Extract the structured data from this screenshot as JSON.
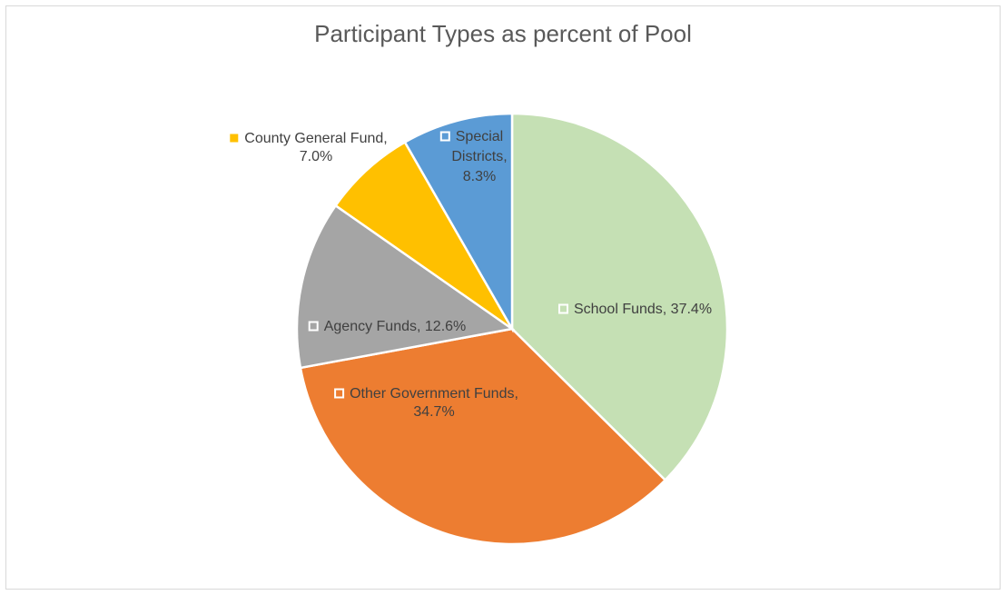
{
  "chart_data": {
    "type": "pie",
    "title": "Participant Types as percent of Pool",
    "legend": "none",
    "slices": [
      {
        "name": "School Funds",
        "value": 37.4,
        "label_lines": [
          "School Funds, 37.4%"
        ],
        "color": "#c5e0b4",
        "marker_style": "hollow"
      },
      {
        "name": "Other Government Funds",
        "value": 34.7,
        "label_lines": [
          "Other Government Funds,",
          "34.7%"
        ],
        "color": "#ed7d31",
        "marker_style": "hollow"
      },
      {
        "name": "Agency Funds",
        "value": 12.6,
        "label_lines": [
          "Agency Funds, 12.6%"
        ],
        "color": "#a5a5a5",
        "marker_style": "hollow"
      },
      {
        "name": "County General Fund",
        "value": 7.0,
        "label_lines": [
          "County General Fund,",
          "7.0%"
        ],
        "color": "#ffc000",
        "marker_style": "filled"
      },
      {
        "name": "Special Districts",
        "value": 8.3,
        "label_lines": [
          "Special",
          "Districts,",
          "8.3%"
        ],
        "color": "#5b9bd5",
        "marker_style": "hollow"
      }
    ]
  }
}
